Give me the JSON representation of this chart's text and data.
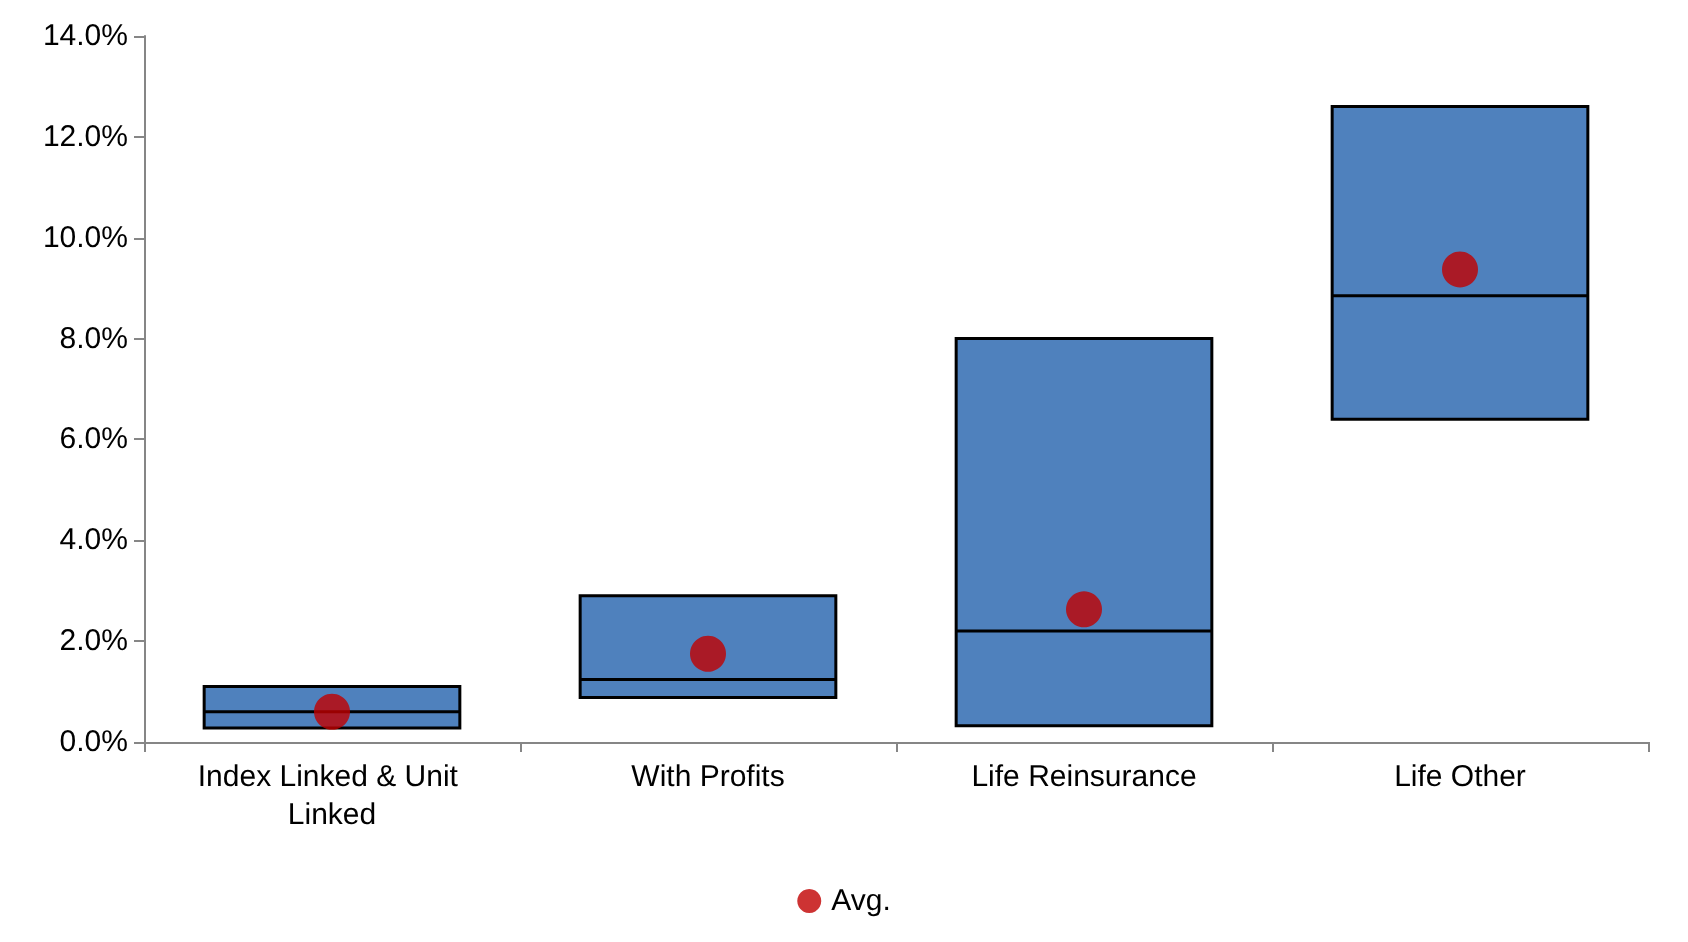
{
  "chart_data": {
    "type": "box",
    "categories": [
      "Index Linked & Unit Linked",
      "With Profits",
      "Life Reinsurance",
      "Life Other"
    ],
    "ylim": [
      0,
      14
    ],
    "yticks": [
      {
        "value": 0,
        "label": "0.0%"
      },
      {
        "value": 2,
        "label": "2.0%"
      },
      {
        "value": 4,
        "label": "4.0%"
      },
      {
        "value": 6,
        "label": "6.0%"
      },
      {
        "value": 8,
        "label": "8.0%"
      },
      {
        "value": 10,
        "label": "10.0%"
      },
      {
        "value": 12,
        "label": "12.0%"
      },
      {
        "value": 14,
        "label": "14.0%"
      }
    ],
    "grid": false,
    "legend": "bottom",
    "series": [
      {
        "type": "box",
        "color": "#4f81bd",
        "boxes": [
          {
            "low": 0.28,
            "q1": 0.28,
            "median": 0.6,
            "q3": 1.1,
            "high": 1.1
          },
          {
            "low": 0.88,
            "q1": 0.88,
            "median": 1.24,
            "q3": 2.9,
            "high": 2.9
          },
          {
            "low": 0.32,
            "q1": 0.32,
            "median": 2.2,
            "q3": 8.0,
            "high": 8.0
          },
          {
            "low": 6.4,
            "q1": 6.4,
            "median": 8.85,
            "q3": 12.6,
            "high": 12.6
          }
        ]
      },
      {
        "type": "scatter",
        "name": "Avg.",
        "color": "#c00000",
        "marker": "circle",
        "x": [
          "Index Linked & Unit Linked",
          "With Profits",
          "Life Reinsurance",
          "Life Other"
        ],
        "values": [
          0.6,
          1.75,
          2.63,
          9.37
        ]
      }
    ]
  }
}
